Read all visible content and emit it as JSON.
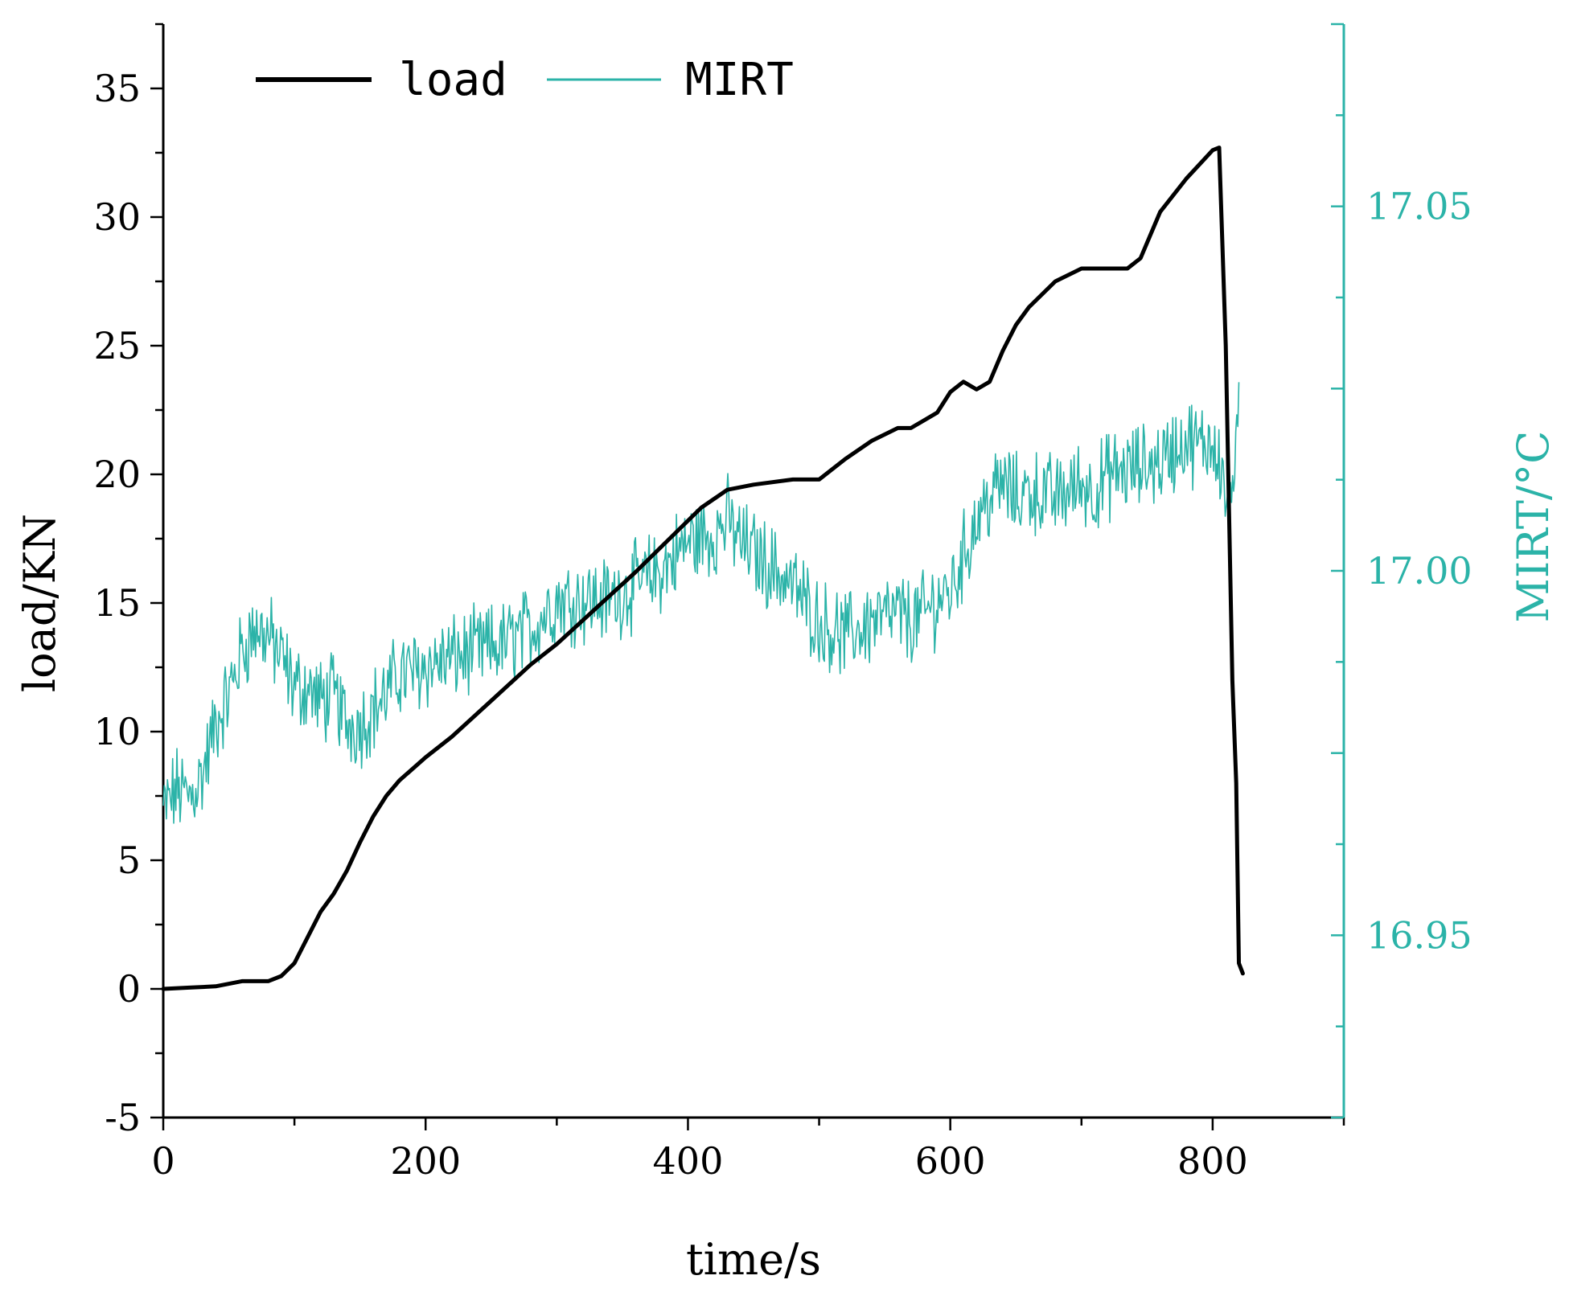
{
  "chart_data": {
    "type": "line",
    "xlabel": "time/s",
    "ylabel_left": "load/KN",
    "ylabel_right": "MIRT/°C",
    "xlim": [
      0,
      900
    ],
    "ylim_left": [
      -5,
      37.5
    ],
    "ylim_right": [
      16.925,
      17.075
    ],
    "x_ticks": [
      "0",
      "200",
      "400",
      "600",
      "800"
    ],
    "x_tick_values": [
      0,
      200,
      400,
      600,
      800
    ],
    "y_left_ticks": [
      "-5",
      "0",
      "5",
      "10",
      "15",
      "20",
      "25",
      "30",
      "35"
    ],
    "y_left_tick_values": [
      -5,
      0,
      5,
      10,
      15,
      20,
      25,
      30,
      35
    ],
    "y_right_ticks": [
      "16.95",
      "17.00",
      "17.05"
    ],
    "y_right_tick_values": [
      16.95,
      17.0,
      17.05
    ],
    "legend": {
      "position": "top-left",
      "entries": [
        "load",
        "MIRT"
      ]
    },
    "colors": {
      "load": "#000000",
      "mirt": "#2bb3a8",
      "right_axis": "#2bb3a8",
      "left_axis": "#000000"
    },
    "series": [
      {
        "name": "load",
        "axis": "left",
        "x": [
          0,
          20,
          40,
          60,
          70,
          80,
          90,
          100,
          110,
          120,
          130,
          140,
          150,
          160,
          170,
          180,
          200,
          220,
          250,
          280,
          300,
          330,
          360,
          390,
          410,
          430,
          450,
          480,
          500,
          520,
          540,
          560,
          570,
          590,
          600,
          610,
          620,
          630,
          640,
          650,
          660,
          680,
          700,
          720,
          735,
          745,
          760,
          780,
          800,
          805,
          810,
          815,
          818,
          820,
          823
        ],
        "values": [
          0,
          0.05,
          0.1,
          0.3,
          0.3,
          0.3,
          0.5,
          1.0,
          2.0,
          3.0,
          3.7,
          4.6,
          5.7,
          6.7,
          7.5,
          8.1,
          9.0,
          9.8,
          11.2,
          12.6,
          13.4,
          14.8,
          16.2,
          17.7,
          18.7,
          19.4,
          19.6,
          19.8,
          19.8,
          20.6,
          21.3,
          21.8,
          21.8,
          22.4,
          23.2,
          23.6,
          23.3,
          23.6,
          24.8,
          25.8,
          26.5,
          27.5,
          28.0,
          28.0,
          28.0,
          28.4,
          30.2,
          31.5,
          32.6,
          32.7,
          25.0,
          12.0,
          8.0,
          1.0,
          0.6
        ]
      },
      {
        "name": "MIRT",
        "axis": "right",
        "x": [
          0,
          10,
          20,
          30,
          40,
          50,
          60,
          70,
          80,
          90,
          100,
          110,
          120,
          130,
          140,
          150,
          160,
          170,
          180,
          190,
          200,
          220,
          240,
          260,
          280,
          300,
          320,
          340,
          360,
          380,
          400,
          420,
          430,
          440,
          460,
          480,
          500,
          510,
          520,
          540,
          560,
          570,
          580,
          590,
          600,
          610,
          620,
          630,
          640,
          650,
          660,
          680,
          700,
          710,
          720,
          740,
          760,
          780,
          790,
          800,
          805,
          810,
          815,
          820
        ],
        "values": [
          16.967,
          16.97,
          16.969,
          16.972,
          16.979,
          16.983,
          16.989,
          16.992,
          16.991,
          16.988,
          16.984,
          16.984,
          16.982,
          16.983,
          16.979,
          16.979,
          16.981,
          16.983,
          16.986,
          16.986,
          16.987,
          16.988,
          16.989,
          16.99,
          16.992,
          16.996,
          16.996,
          16.996,
          16.998,
          17.0,
          17.004,
          17.005,
          17.007,
          17.004,
          17.001,
          16.998,
          16.993,
          16.992,
          16.991,
          16.993,
          16.994,
          16.993,
          16.994,
          16.996,
          16.997,
          17.002,
          17.007,
          17.01,
          17.012,
          17.01,
          17.011,
          17.01,
          17.012,
          17.011,
          17.013,
          17.014,
          17.015,
          17.018,
          17.017,
          17.018,
          17.016,
          17.01,
          17.012,
          17.02
        ]
      }
    ]
  }
}
